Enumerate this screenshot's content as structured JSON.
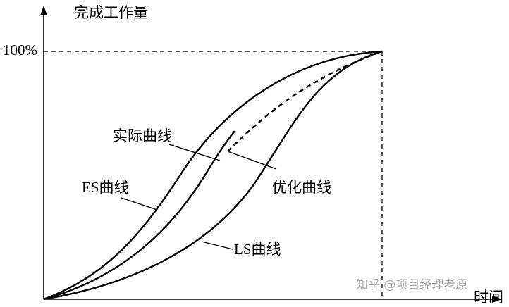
{
  "axes": {
    "y_label": "完成工作量",
    "y_max_label": "100%",
    "x_label": "时间"
  },
  "curves": [
    {
      "label": "实际曲线"
    },
    {
      "label": "ES曲线"
    },
    {
      "label": "优化曲线"
    },
    {
      "label": "LS曲线"
    }
  ],
  "watermark": "知乎 @项目经理老原"
}
